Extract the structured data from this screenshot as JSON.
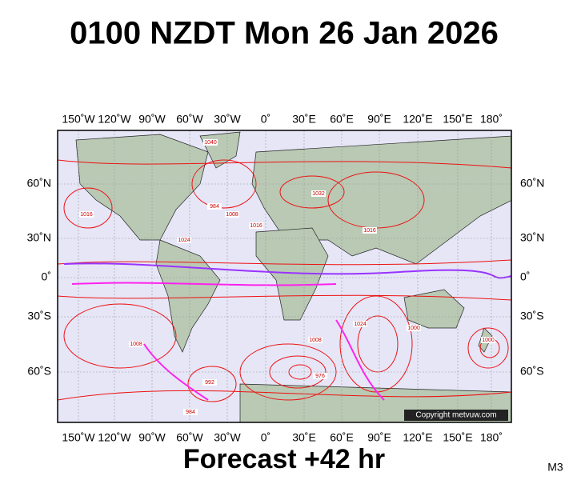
{
  "header": {
    "title": "0100 NZDT Mon 26 Jan 2026"
  },
  "map": {
    "longitude_labels": [
      "150˚W",
      "120˚W",
      "90˚W",
      "60˚W",
      "30˚W",
      "0˚",
      "30˚E",
      "60˚E",
      "90˚E",
      "120˚E",
      "150˚E",
      "180˚"
    ],
    "latitude_labels": [
      "60˚N",
      "30˚N",
      "0˚",
      "30˚S",
      "60˚S"
    ],
    "isobar_labels": [
      "1016",
      "1024",
      "1008",
      "1032",
      "1016",
      "1008",
      "1000",
      "984",
      "1008",
      "976",
      "1024",
      "992",
      "984",
      "1000",
      "1016",
      "1040"
    ],
    "copyright": "Copyright metvuw.com"
  },
  "footer": {
    "forecast": "Forecast +42 hr",
    "code": "M3"
  }
}
